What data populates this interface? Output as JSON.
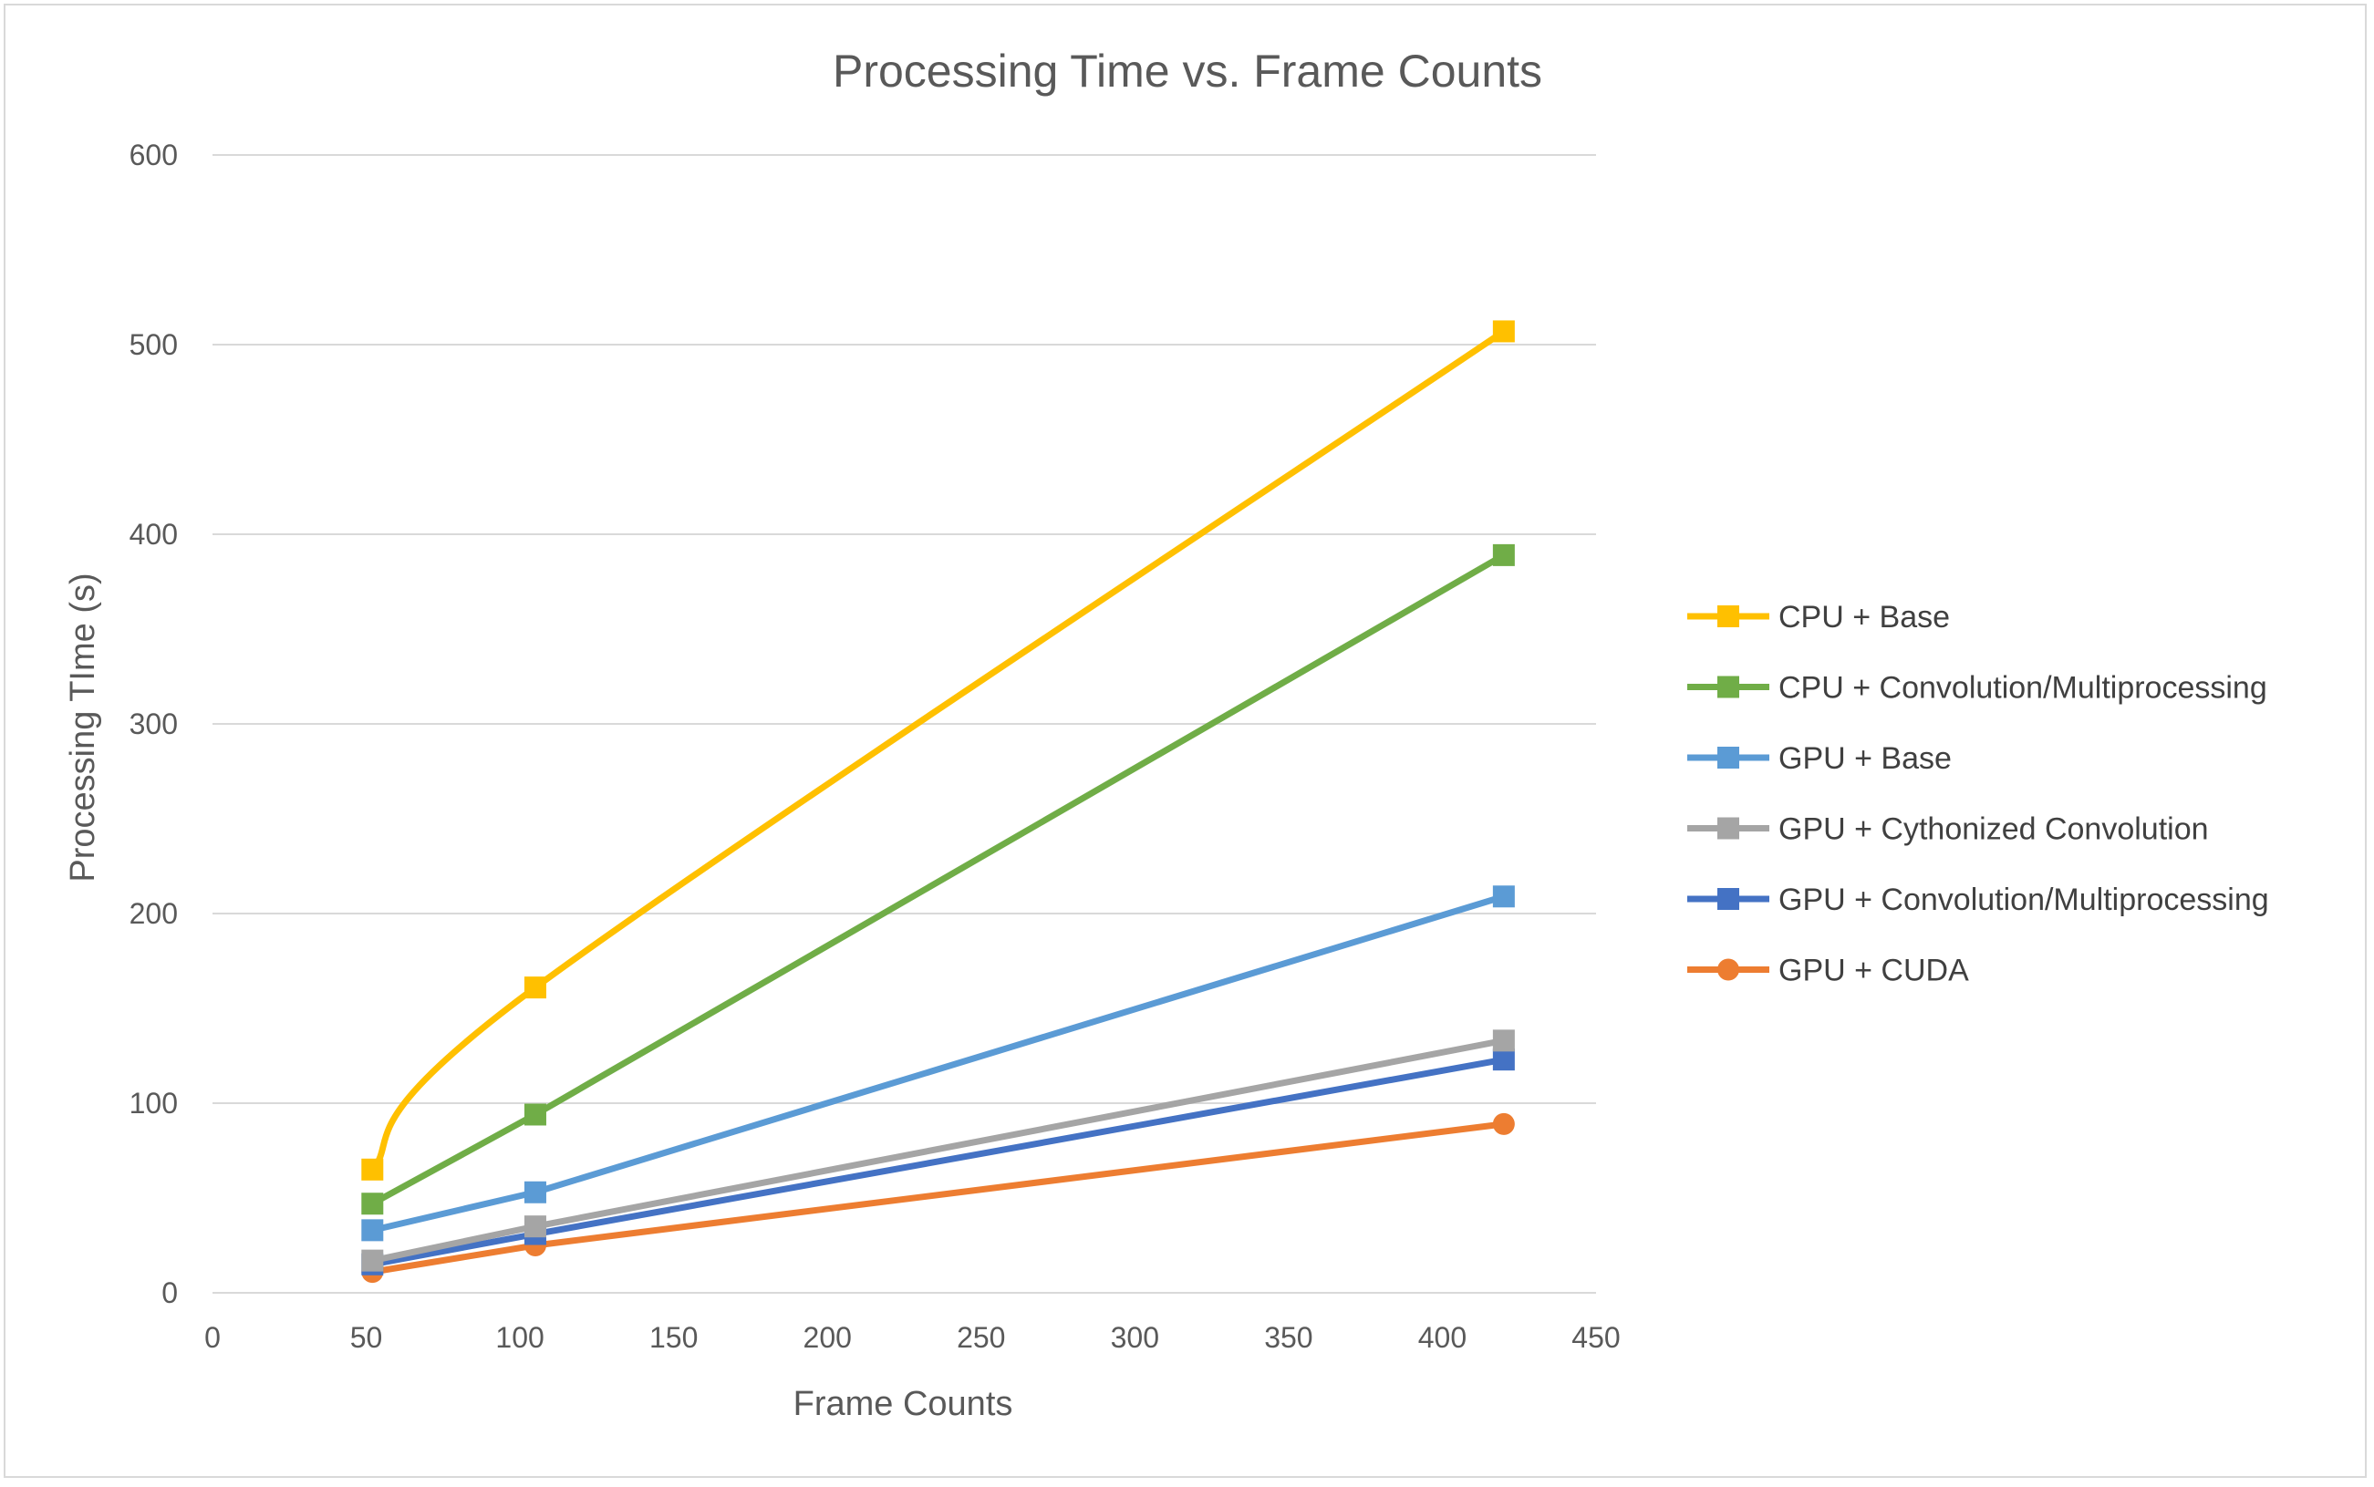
{
  "chart_data": {
    "type": "line",
    "title": "Processing Time vs. Frame Counts",
    "xlabel": "Frame Counts",
    "ylabel": "Processing TIme (s)",
    "xlim": [
      0,
      450
    ],
    "ylim": [
      0,
      600
    ],
    "x_ticks": [
      0,
      50,
      100,
      150,
      200,
      250,
      300,
      350,
      400,
      450
    ],
    "y_ticks": [
      0,
      100,
      200,
      300,
      400,
      500,
      600
    ],
    "grid": "horizontal",
    "legend_position": "right",
    "series": [
      {
        "name": "CPU + Base",
        "color": "#FFC000",
        "marker": "square",
        "smooth": true,
        "x": [
          52,
          105,
          420
        ],
        "y": [
          65,
          161,
          507
        ]
      },
      {
        "name": "CPU + Convolution/Multiprocessing",
        "color": "#70AD47",
        "marker": "square",
        "smooth": false,
        "x": [
          52,
          105,
          420
        ],
        "y": [
          47,
          94,
          389
        ]
      },
      {
        "name": "GPU + Base",
        "color": "#5B9BD5",
        "marker": "square",
        "smooth": false,
        "x": [
          52,
          105,
          420
        ],
        "y": [
          33,
          53,
          209
        ]
      },
      {
        "name": "GPU + Cythonized Convolution",
        "color": "#A5A5A5",
        "marker": "square",
        "smooth": false,
        "x": [
          52,
          105,
          420
        ],
        "y": [
          17,
          35,
          133
        ]
      },
      {
        "name": "GPU + Convolution/Multiprocessing",
        "color": "#4472C4",
        "marker": "square",
        "smooth": false,
        "x": [
          52,
          105,
          420
        ],
        "y": [
          15,
          31,
          123
        ]
      },
      {
        "name": "GPU + CUDA",
        "color": "#ED7D31",
        "marker": "circle",
        "smooth": false,
        "x": [
          52,
          105,
          420
        ],
        "y": [
          11,
          25,
          89
        ]
      }
    ]
  }
}
